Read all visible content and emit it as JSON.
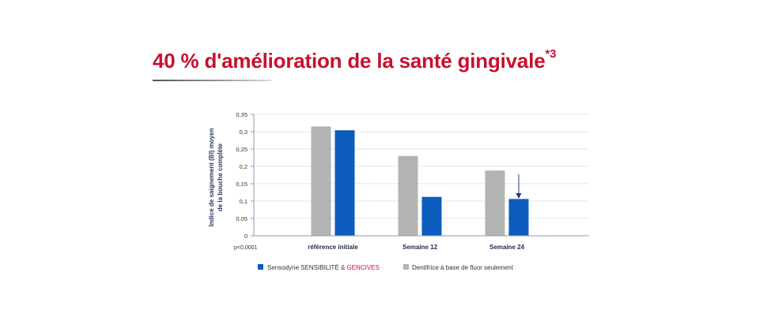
{
  "headline": {
    "text": "40 % d'amélioration de la santé gingivale",
    "superscript": "*3"
  },
  "chart_data": {
    "type": "bar",
    "ylabel_line1": "Indice de saignement (BI) moyen",
    "ylabel_line2": "de la bouche complète",
    "ylim": [
      0,
      0.35
    ],
    "yticks": [
      "0,35",
      "0,3",
      "0,25",
      "0,2",
      "0,15",
      "0,1",
      "0,05",
      "0"
    ],
    "ytick_values": [
      0.35,
      0.3,
      0.25,
      0.2,
      0.15,
      0.1,
      0.05,
      0
    ],
    "grid": true,
    "categories": [
      "référence initiale",
      "Semaine 12",
      "Semaine 24"
    ],
    "series": [
      {
        "name": "Dentifrice à base de fluor seulement",
        "color": "#b2b4b3",
        "values": [
          0.315,
          0.23,
          0.188
        ]
      },
      {
        "name_part1": "Sensodyne SENSIBILITÉ ",
        "name_part2": "& GENCIVES",
        "name_part2_color": "#c8102e",
        "color": "#0c5cbd",
        "values": [
          0.304,
          0.112,
          0.106
        ]
      }
    ],
    "pvalue": "p<0,0001",
    "annotation": "arrow-down on Semaine 24 Sensodyne bar",
    "legend_position": "bottom"
  }
}
